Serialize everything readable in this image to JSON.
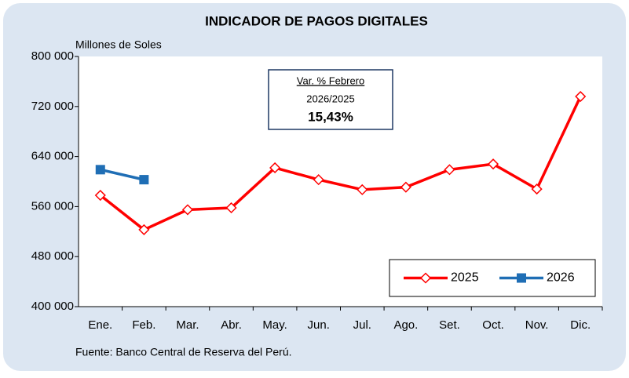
{
  "chart_data": {
    "type": "line",
    "title": "INDICADOR DE PAGOS DIGITALES",
    "y_label": "Millones de Soles",
    "source": "Fuente: Banco Central de Reserva del Perú.",
    "annotation": {
      "title": "Var. % Febrero",
      "subtitle": "2026/2025",
      "value": "15,43%"
    },
    "categories": [
      "Ene.",
      "Feb.",
      "Mar.",
      "Abr.",
      "May.",
      "Jun.",
      "Jul.",
      "Ago.",
      "Set.",
      "Oct.",
      "Nov.",
      "Dic."
    ],
    "series": [
      {
        "name": "2025",
        "color": "#ff0000",
        "marker": "diamond",
        "values": [
          578000,
          523000,
          555000,
          558000,
          622000,
          603000,
          587000,
          591000,
          619000,
          628000,
          588000,
          736000
        ]
      },
      {
        "name": "2026",
        "color": "#1f6eb5",
        "marker": "square",
        "values": [
          619000,
          603000,
          null,
          null,
          null,
          null,
          null,
          null,
          null,
          null,
          null,
          null
        ]
      }
    ],
    "ylim": [
      400000,
      800000
    ],
    "yticks": [
      {
        "value": 400000,
        "label": "400 000"
      },
      {
        "value": 480000,
        "label": "480 000"
      },
      {
        "value": 560000,
        "label": "560 000"
      },
      {
        "value": 640000,
        "label": "640 000"
      },
      {
        "value": 720000,
        "label": "720 000"
      },
      {
        "value": 800000,
        "label": "800 000"
      }
    ],
    "legend": "lower right"
  }
}
